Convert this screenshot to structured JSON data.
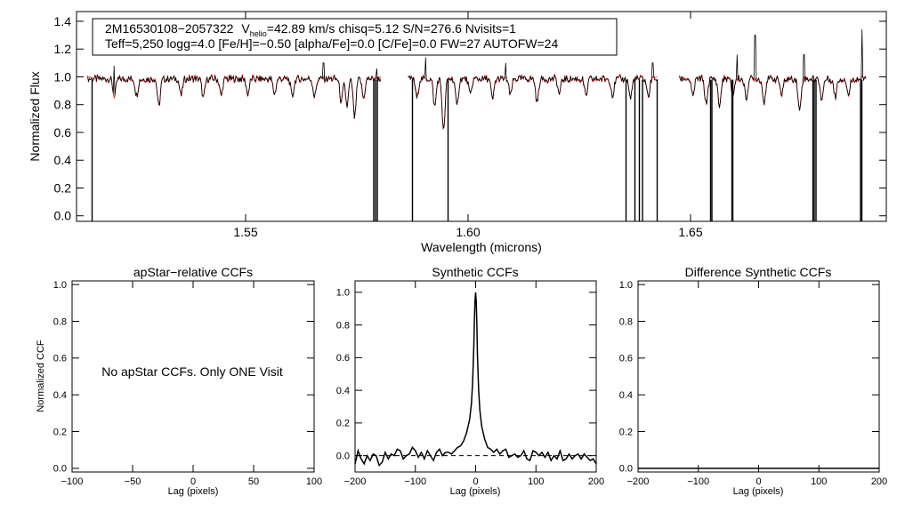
{
  "chart_data": [
    {
      "type": "line",
      "panel": "spectrum",
      "title": "",
      "xlabel": "Wavelength (microns)",
      "ylabel": "Normalized Flux",
      "xlim": [
        1.512,
        1.694
      ],
      "ylim": [
        -0.04,
        1.47
      ],
      "xticks": [
        1.55,
        1.6,
        1.65
      ],
      "xtick_labels": [
        "1.55",
        "1.60",
        "1.65"
      ],
      "yticks": [
        0.0,
        0.2,
        0.4,
        0.6,
        0.8,
        1.0,
        1.2,
        1.4
      ],
      "ytick_labels": [
        "0.0",
        "0.2",
        "0.4",
        "0.6",
        "0.8",
        "1.0",
        "1.2",
        "1.4"
      ],
      "annotation": {
        "star_id": "2M16530108−2057322",
        "vhelio_label": "V",
        "vhelio_sub": "helio",
        "vhelio_rest": "=42.89 km/s  chisq=5.12  S/N=276.6  Nvisits=1",
        "line2": "Teff=5,250 logg=4.0 [Fe/H]=−0.50 [alpha/Fe]=0.0 [C/Fe]=0.0 FW=27 AUTOFW=24"
      },
      "series_colors": {
        "observed": "#000000",
        "model": "#e8141a"
      },
      "chips": [
        [
          1.5145,
          1.5805
        ],
        [
          1.5865,
          1.6425
        ],
        [
          1.6475,
          1.6895
        ]
      ],
      "dropouts": [
        1.5155,
        1.5788,
        1.5792,
        1.5796,
        1.5875,
        1.5955,
        1.6355,
        1.6375,
        1.6385,
        1.6392,
        1.6425,
        1.6545,
        1.6548,
        1.6593,
        1.6595,
        1.6775,
        1.6778,
        1.6782,
        1.6882,
        1.6885
      ],
      "spikes": [
        [
          1.5205,
          1.08
        ],
        [
          1.5675,
          1.1
        ],
        [
          1.5795,
          1.06
        ],
        [
          1.5905,
          1.14
        ],
        [
          1.6085,
          1.1
        ],
        [
          1.6415,
          1.1
        ],
        [
          1.6605,
          1.16
        ],
        [
          1.6645,
          1.3
        ],
        [
          1.6755,
          1.16
        ],
        [
          1.6885,
          1.34
        ]
      ],
      "dips": [
        [
          1.5205,
          0.13
        ],
        [
          1.5255,
          0.12
        ],
        [
          1.5305,
          0.2
        ],
        [
          1.5355,
          0.12
        ],
        [
          1.5405,
          0.14
        ],
        [
          1.5445,
          0.12
        ],
        [
          1.5505,
          0.11
        ],
        [
          1.5565,
          0.11
        ],
        [
          1.5605,
          0.13
        ],
        [
          1.5655,
          0.13
        ],
        [
          1.5715,
          0.17
        ],
        [
          1.5728,
          0.2
        ],
        [
          1.5745,
          0.28
        ],
        [
          1.5765,
          0.14
        ],
        [
          1.5885,
          0.14
        ],
        [
          1.5925,
          0.2
        ],
        [
          1.5945,
          0.38
        ],
        [
          1.5975,
          0.2
        ],
        [
          1.6005,
          0.12
        ],
        [
          1.6055,
          0.15
        ],
        [
          1.6095,
          0.12
        ],
        [
          1.6155,
          0.17
        ],
        [
          1.6205,
          0.11
        ],
        [
          1.6265,
          0.13
        ],
        [
          1.6325,
          0.12
        ],
        [
          1.6365,
          0.14
        ],
        [
          1.6405,
          0.13
        ],
        [
          1.6505,
          0.13
        ],
        [
          1.6535,
          0.18
        ],
        [
          1.6565,
          0.2
        ],
        [
          1.6595,
          0.12
        ],
        [
          1.6625,
          0.14
        ],
        [
          1.6665,
          0.17
        ],
        [
          1.6705,
          0.12
        ],
        [
          1.6745,
          0.24
        ],
        [
          1.6795,
          0.15
        ],
        [
          1.6825,
          0.13
        ],
        [
          1.6855,
          0.12
        ]
      ]
    },
    {
      "type": "line",
      "panel": "apstar-ccf",
      "title": "apStar−relative CCFs",
      "xlabel": "Lag (pixels)",
      "ylabel": "Normalized CCF",
      "xlim": [
        -100,
        100
      ],
      "ylim": [
        -0.02,
        1.02
      ],
      "xticks": [
        -100,
        -50,
        0,
        50,
        100
      ],
      "xtick_labels": [
        "−100",
        "−50",
        "0",
        "50",
        "100"
      ],
      "yticks": [
        0.0,
        0.2,
        0.4,
        0.6,
        0.8,
        1.0
      ],
      "ytick_labels": [
        "0.0",
        "0.2",
        "0.4",
        "0.6",
        "0.8",
        "1.0"
      ],
      "message": "No apStar CCFs.  Only ONE Visit"
    },
    {
      "type": "line",
      "panel": "synthetic-ccf",
      "title": "Synthetic CCFs",
      "xlabel": "Lag (pixels)",
      "ylabel": "",
      "xlim": [
        -200,
        200
      ],
      "ylim": [
        -0.1,
        1.07
      ],
      "xticks": [
        -200,
        -100,
        0,
        100,
        200
      ],
      "xtick_labels": [
        "−200",
        "−100",
        "0",
        "100",
        "200"
      ],
      "yticks": [
        0.0,
        0.2,
        0.4,
        0.6,
        0.8,
        1.0
      ],
      "ytick_labels": [
        "0.0",
        "0.2",
        "0.4",
        "0.6",
        "0.8",
        "1.0"
      ],
      "zero_line": 0.0,
      "x": [
        -200,
        -195,
        -190,
        -185,
        -180,
        -175,
        -170,
        -165,
        -160,
        -155,
        -150,
        -145,
        -140,
        -135,
        -130,
        -125,
        -120,
        -115,
        -110,
        -105,
        -100,
        -95,
        -90,
        -85,
        -80,
        -75,
        -70,
        -65,
        -60,
        -55,
        -50,
        -45,
        -40,
        -35,
        -30,
        -25,
        -20,
        -15,
        -10,
        -7,
        -5,
        -3,
        -2,
        -1,
        0,
        1,
        2,
        3,
        5,
        7,
        10,
        15,
        20,
        25,
        30,
        35,
        40,
        45,
        50,
        55,
        60,
        65,
        70,
        75,
        80,
        85,
        90,
        95,
        100,
        105,
        110,
        115,
        120,
        125,
        130,
        135,
        140,
        145,
        150,
        155,
        160,
        165,
        170,
        175,
        180,
        185,
        190,
        195,
        200
      ],
      "y": [
        -0.05,
        0.03,
        -0.02,
        -0.05,
        0.0,
        -0.03,
        0.01,
        0.0,
        -0.06,
        -0.04,
        0.02,
        -0.02,
        0.01,
        0.0,
        0.04,
        0.03,
        -0.02,
        0.0,
        0.01,
        0.05,
        0.03,
        -0.01,
        0.02,
        -0.02,
        0.03,
        0.0,
        -0.03,
        0.02,
        0.04,
        0.0,
        0.02,
        0.02,
        0.01,
        0.03,
        0.05,
        0.06,
        0.09,
        0.14,
        0.22,
        0.32,
        0.45,
        0.68,
        0.83,
        0.95,
        1.0,
        0.94,
        0.8,
        0.62,
        0.4,
        0.28,
        0.18,
        0.1,
        0.05,
        0.04,
        0.02,
        0.04,
        0.01,
        0.03,
        0.04,
        -0.01,
        0.0,
        0.01,
        -0.01,
        0.0,
        0.03,
        -0.02,
        -0.03,
        0.03,
        0.02,
        0.0,
        0.02,
        -0.01,
        0.02,
        -0.03,
        0.0,
        -0.02,
        0.03,
        -0.03,
        -0.02,
        0.01,
        -0.02,
        0.0,
        0.01,
        -0.02,
        0.01,
        -0.01,
        -0.03,
        -0.02,
        -0.05
      ]
    },
    {
      "type": "line",
      "panel": "difference-ccf",
      "title": "Difference Synthetic CCFs",
      "xlabel": "Lag (pixels)",
      "ylabel": "",
      "xlim": [
        -200,
        200
      ],
      "ylim": [
        -0.02,
        1.02
      ],
      "xticks": [
        -200,
        -100,
        0,
        100,
        200
      ],
      "xtick_labels": [
        "−200",
        "−100",
        "0",
        "100",
        "200"
      ],
      "yticks": [
        0.0,
        0.2,
        0.4,
        0.6,
        0.8,
        1.0
      ],
      "ytick_labels": [
        "0.0",
        "0.2",
        "0.4",
        "0.6",
        "0.8",
        "1.0"
      ],
      "x": [
        -200,
        200
      ],
      "y": [
        0.0,
        0.0
      ]
    }
  ]
}
